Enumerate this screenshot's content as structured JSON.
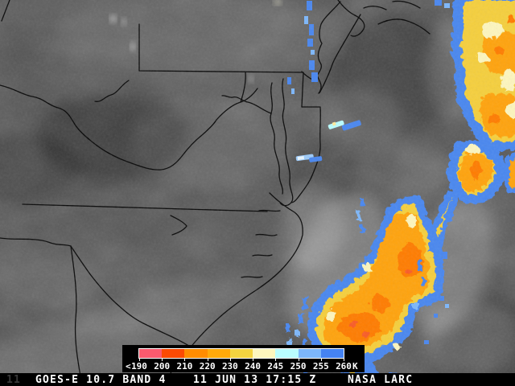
{
  "legend": {
    "prefix": "<",
    "unit": "K",
    "tick_labels": [
      "190",
      "200",
      "210",
      "220",
      "230",
      "240",
      "245",
      "250",
      "255",
      "260"
    ],
    "swatch_colors": [
      "#fb5a6e",
      "#fc4a03",
      "#ff8c00",
      "#ffa90a",
      "#f3d340",
      "#fdf6be",
      "#b9fdff",
      "#7db7fb",
      "#4583f3"
    ]
  },
  "footer": {
    "artifact": "11",
    "instrument": "GOES-E 10.7 BAND 4",
    "datetime": "11 JUN 13 17:15 Z",
    "credit": "NASA LARC"
  },
  "map": {
    "palette": {
      "background_gray": "#545454",
      "border_color": "#050505",
      "storm_blue": "#4a87ef",
      "storm_blue_light": "#9ccaf9",
      "storm_yellow": "#f5cf3c",
      "storm_cream": "#fdf6be",
      "storm_orange": "#ffa30d",
      "storm_orange_deep": "#ff7c00",
      "storm_red": "#f95b28"
    }
  }
}
